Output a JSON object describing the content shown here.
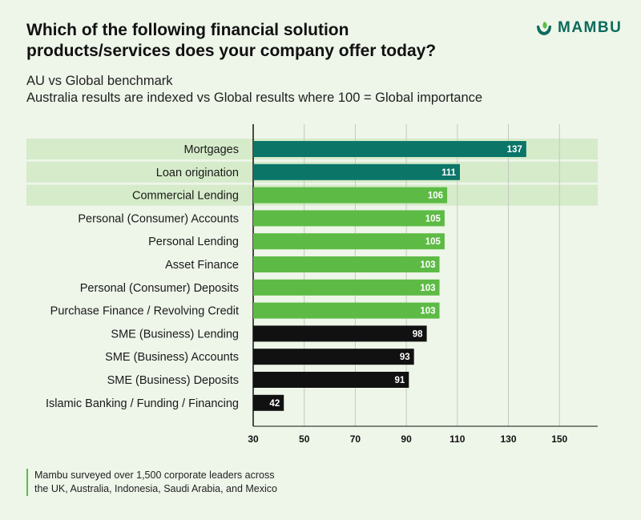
{
  "header": {
    "title": "Which of the following financial solution products/services does your company offer today?",
    "subtitle_line1": "AU vs Global benchmark",
    "subtitle_line2": "Australia results are indexed vs Global results where 100 = Global importance"
  },
  "brand": {
    "name": "MAMBU",
    "icon": "mambu-leaf-icon",
    "color": "#0b6b5c"
  },
  "chart_data": {
    "type": "bar",
    "orientation": "horizontal",
    "categories": [
      "Mortgages",
      "Loan origination",
      "Commercial Lending",
      "Personal (Consumer) Accounts",
      "Personal Lending",
      "Asset Finance",
      "Personal (Consumer) Deposits",
      "Purchase Finance / Revolving Credit",
      "SME (Business) Lending",
      "SME (Business) Accounts",
      "SME (Business) Deposits",
      "Islamic Banking / Funding / Financing"
    ],
    "values": [
      137,
      111,
      106,
      105,
      105,
      103,
      103,
      103,
      98,
      93,
      91,
      42
    ],
    "bar_colors": [
      "#0b7568",
      "#0b7568",
      "#5dbb45",
      "#5dbb45",
      "#5dbb45",
      "#5dbb45",
      "#5dbb45",
      "#5dbb45",
      "#111111",
      "#111111",
      "#111111",
      "#111111"
    ],
    "highlighted_rows": [
      0,
      1,
      2
    ],
    "highlight_color": "#d5ebca",
    "x_ticks": [
      30,
      50,
      70,
      90,
      110,
      130,
      150
    ],
    "xlim": [
      30,
      165
    ],
    "grid": true,
    "data_labels": true
  },
  "footer": {
    "note_line1": "Mambu surveyed over 1,500 corporate leaders across",
    "note_line2": "the UK, Australia, Indonesia, Saudi Arabia, and Mexico"
  }
}
